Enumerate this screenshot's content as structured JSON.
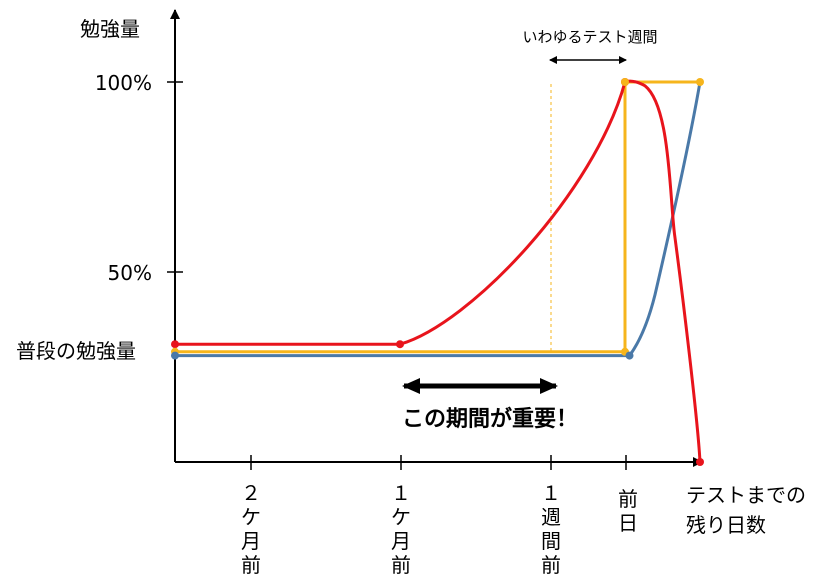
{
  "chart_data": {
    "type": "line",
    "title": "",
    "ylabel": "勉強量",
    "xlabel": "テストまでの残り日数",
    "ytick_labels": [
      "100%",
      "50%"
    ],
    "baseline_label": "普段の勉強量",
    "xtick_labels": [
      "２ケ月前",
      "１ケ月前",
      "１週間前",
      "前日"
    ],
    "annotations": {
      "test_week": "いわゆるテスト週間",
      "important_period": "この期間が重要！"
    },
    "colors": {
      "red": "#e8141c",
      "orange": "#f6b51c",
      "blue": "#4a79a8",
      "axis": "#000000",
      "guide": "#f6b51c"
    },
    "series": [
      {
        "color": "red",
        "x": [
          0,
          1.5,
          1.5,
          3.0,
          3.05,
          3.2,
          3.33,
          3.5
        ],
        "y": [
          31,
          31,
          31,
          100,
          100,
          99,
          60,
          0
        ]
      },
      {
        "color": "orange",
        "x": [
          0,
          3.0,
          3.0,
          3.5
        ],
        "y": [
          29,
          29,
          100,
          100
        ]
      },
      {
        "color": "blue",
        "x": [
          0,
          3.03,
          3.2,
          3.5
        ],
        "y": [
          28,
          28,
          44,
          100
        ]
      }
    ]
  }
}
